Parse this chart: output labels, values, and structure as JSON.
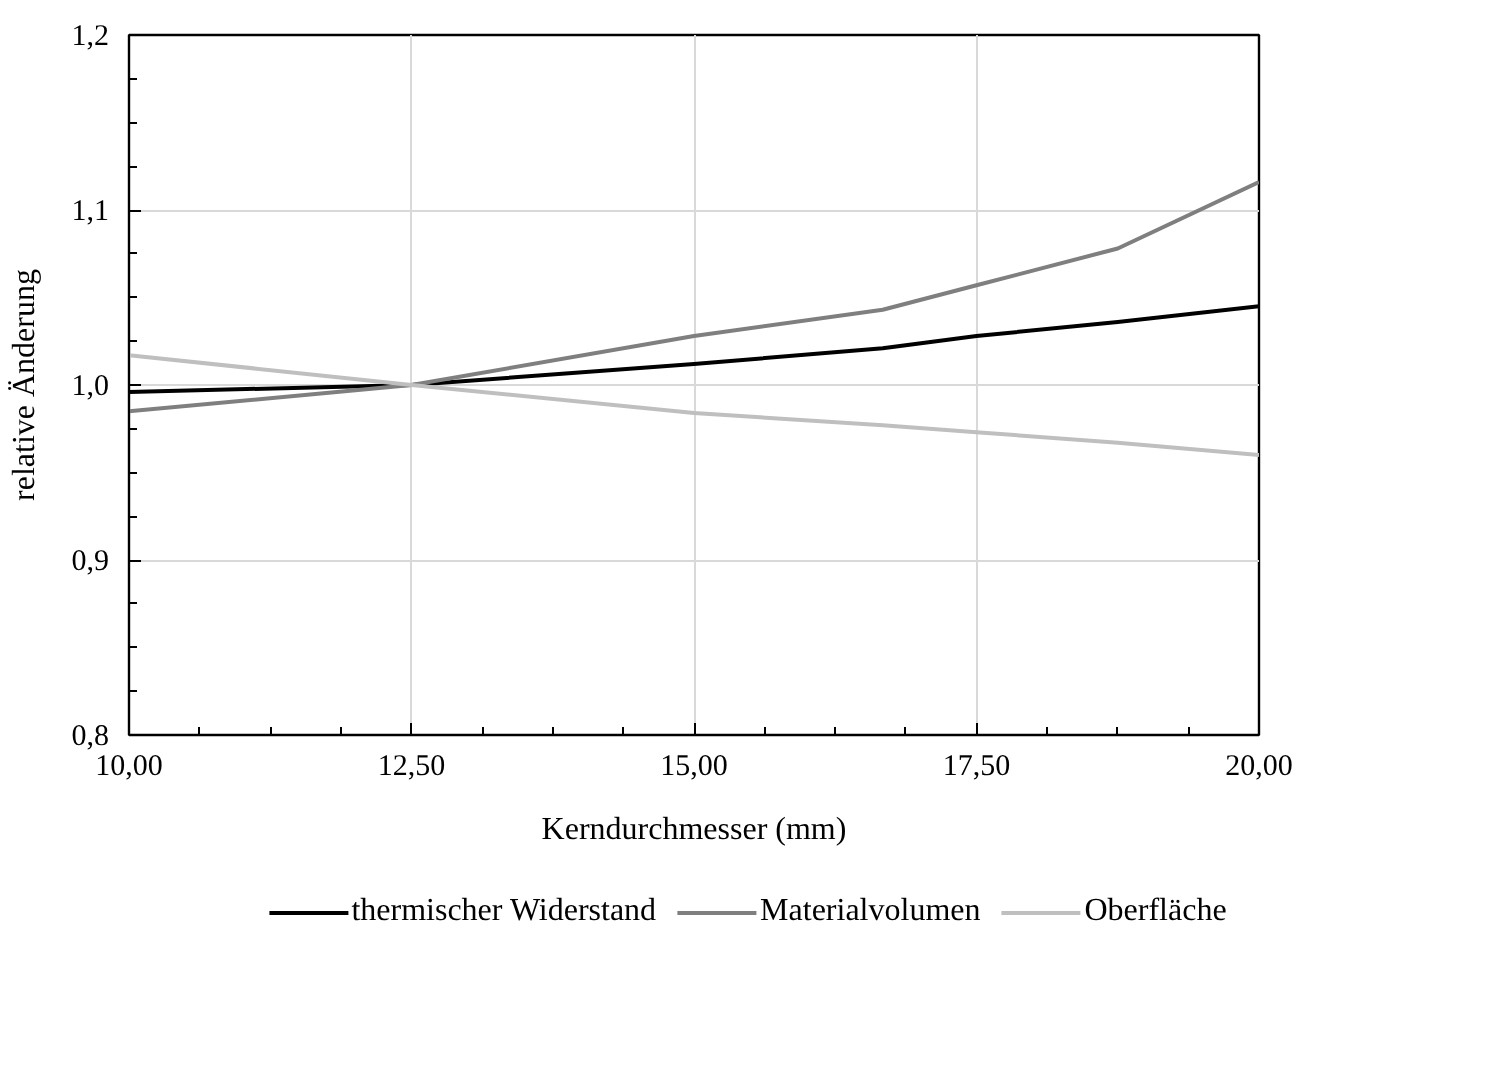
{
  "chart_data": {
    "type": "line",
    "xlabel": "Kerndurchmesser (mm)",
    "ylabel": "relative Änderung",
    "x": [
      10,
      12.5,
      15,
      16.67,
      17.5,
      18.75,
      20
    ],
    "series": [
      {
        "name": "thermischer Widerstand",
        "color": "#000000",
        "values": [
          0.996,
          1.0,
          1.012,
          1.021,
          1.028,
          1.036,
          1.045
        ]
      },
      {
        "name": "Materialvolumen",
        "color": "#7f7f7f",
        "values": [
          0.985,
          1.0,
          1.028,
          1.043,
          1.057,
          1.078,
          1.116
        ]
      },
      {
        "name": "Oberfläche",
        "color": "#bfbfbf",
        "values": [
          1.017,
          1.0,
          0.984,
          0.977,
          0.973,
          0.967,
          0.96
        ]
      }
    ],
    "xlim": [
      10,
      20
    ],
    "ylim": [
      0.8,
      1.2
    ],
    "xticks": [
      {
        "value": 10,
        "label": "10,00"
      },
      {
        "value": 12.5,
        "label": "12,50"
      },
      {
        "value": 15,
        "label": "15,00"
      },
      {
        "value": 17.5,
        "label": "17,50"
      },
      {
        "value": 20,
        "label": "20,00"
      }
    ],
    "yticks": [
      {
        "value": 0.8,
        "label": "0,8"
      },
      {
        "value": 0.9,
        "label": "0,9"
      },
      {
        "value": 1.0,
        "label": "1,0"
      },
      {
        "value": 1.1,
        "label": "1,1"
      },
      {
        "value": 1.2,
        "label": "1,2"
      }
    ],
    "grid": true,
    "legend": "bottom",
    "marker": "none",
    "line_style": "solid"
  }
}
